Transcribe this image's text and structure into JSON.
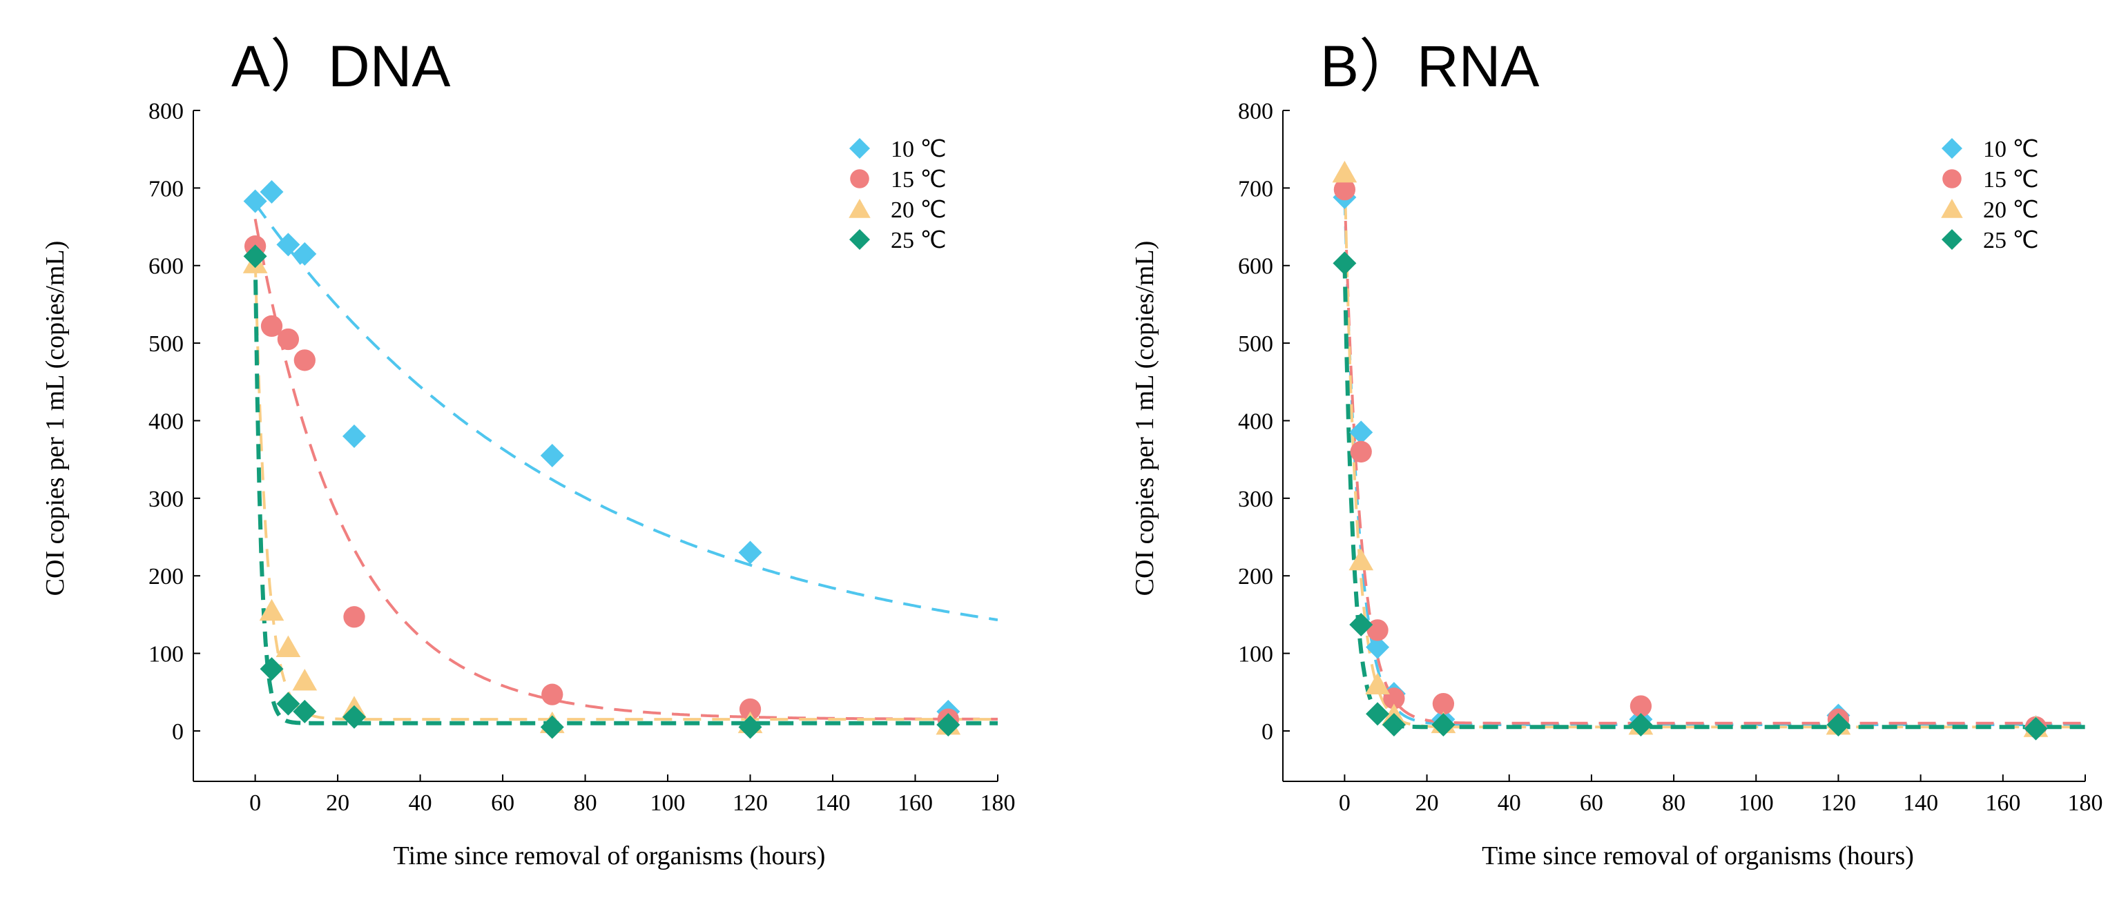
{
  "chart_data": [
    {
      "panel": "A",
      "title": "A）DNA",
      "type": "scatter",
      "xlabel": "Time  since  removal  of organisms  (hours)",
      "ylabel": "COI copies  per 1 mL  (copies/mL)",
      "xlim": [
        -15,
        180
      ],
      "ylim": [
        -65,
        800
      ],
      "xticks": [
        0,
        20,
        40,
        60,
        80,
        100,
        120,
        140,
        160,
        180
      ],
      "yticks": [
        0,
        100,
        200,
        300,
        400,
        500,
        600,
        700,
        800
      ],
      "legend_position": "top-right",
      "series": [
        {
          "name": "10  ℃",
          "color": "#4FC6EE",
          "marker": "diamond",
          "points": [
            [
              0,
              683
            ],
            [
              4,
              695
            ],
            [
              8,
              627
            ],
            [
              12,
              615
            ],
            [
              24,
              380
            ],
            [
              72,
              355
            ],
            [
              120,
              230
            ],
            [
              168,
              25
            ]
          ],
          "fit": {
            "style": "dashed",
            "a": 600,
            "k": 0.0125,
            "c": 80
          }
        },
        {
          "name": "15  ℃",
          "color": "#F07F7F",
          "marker": "circle",
          "points": [
            [
              0,
              625
            ],
            [
              4,
              522
            ],
            [
              8,
              505
            ],
            [
              12,
              478
            ],
            [
              24,
              147
            ],
            [
              72,
              47
            ],
            [
              120,
              28
            ],
            [
              168,
              15
            ]
          ],
          "fit": {
            "style": "dashed",
            "a": 645,
            "k": 0.045,
            "c": 15
          }
        },
        {
          "name": "20  ℃",
          "color": "#F9CD85",
          "marker": "triangle",
          "points": [
            [
              0,
              603
            ],
            [
              4,
              155
            ],
            [
              8,
              108
            ],
            [
              12,
              65
            ],
            [
              24,
              30
            ],
            [
              72,
              10
            ],
            [
              120,
              10
            ],
            [
              168,
              8
            ]
          ],
          "fit": {
            "style": "dashed",
            "a": 593,
            "k": 0.35,
            "c": 15
          }
        },
        {
          "name": "25  ℃",
          "color": "#139D7A",
          "marker": "diamond",
          "points": [
            [
              0,
              612
            ],
            [
              4,
              80
            ],
            [
              8,
              35
            ],
            [
              12,
              25
            ],
            [
              24,
              18
            ],
            [
              72,
              5
            ],
            [
              120,
              5
            ],
            [
              168,
              8
            ]
          ],
          "fit": {
            "style": "dashed-bold",
            "a": 602,
            "k": 0.7,
            "c": 10
          }
        }
      ]
    },
    {
      "panel": "B",
      "title": "B）RNA",
      "type": "scatter",
      "xlabel": "Time  since  removal  of organisms  (hours)",
      "ylabel": "COI copies  per 1 mL  (copies/mL)",
      "xlim": [
        -15,
        180
      ],
      "ylim": [
        -65,
        800
      ],
      "xticks": [
        0,
        20,
        40,
        60,
        80,
        100,
        120,
        140,
        160,
        180
      ],
      "yticks": [
        0,
        100,
        200,
        300,
        400,
        500,
        600,
        700,
        800
      ],
      "legend_position": "top-right",
      "series": [
        {
          "name": "10  ℃",
          "color": "#4FC6EE",
          "marker": "diamond",
          "points": [
            [
              0,
              688
            ],
            [
              4,
              385
            ],
            [
              8,
              108
            ],
            [
              12,
              48
            ],
            [
              24,
              15
            ],
            [
              72,
              15
            ],
            [
              120,
              20
            ],
            [
              168,
              5
            ]
          ],
          "fit": {
            "style": "dashed",
            "a": 680,
            "k": 0.28,
            "c": 8
          }
        },
        {
          "name": "15  ℃",
          "color": "#F07F7F",
          "marker": "circle",
          "points": [
            [
              0,
              698
            ],
            [
              4,
              360
            ],
            [
              8,
              130
            ],
            [
              12,
              42
            ],
            [
              24,
              35
            ],
            [
              72,
              32
            ],
            [
              120,
              15
            ],
            [
              168,
              5
            ]
          ],
          "fit": {
            "style": "dashed",
            "a": 685,
            "k": 0.26,
            "c": 10
          }
        },
        {
          "name": "20  ℃",
          "color": "#F9CD85",
          "marker": "triangle",
          "points": [
            [
              0,
              720
            ],
            [
              4,
              220
            ],
            [
              8,
              60
            ],
            [
              12,
              20
            ],
            [
              24,
              10
            ],
            [
              72,
              8
            ],
            [
              120,
              8
            ],
            [
              168,
              5
            ]
          ],
          "fit": {
            "style": "dashed",
            "a": 715,
            "k": 0.33,
            "c": 5
          }
        },
        {
          "name": "25  ℃",
          "color": "#139D7A",
          "marker": "diamond",
          "points": [
            [
              0,
              603
            ],
            [
              4,
              137
            ],
            [
              8,
              22
            ],
            [
              12,
              8
            ],
            [
              24,
              8
            ],
            [
              72,
              8
            ],
            [
              120,
              8
            ],
            [
              168,
              3
            ]
          ],
          "fit": {
            "style": "dashed-bold",
            "a": 598,
            "k": 0.45,
            "c": 5
          }
        }
      ]
    }
  ]
}
